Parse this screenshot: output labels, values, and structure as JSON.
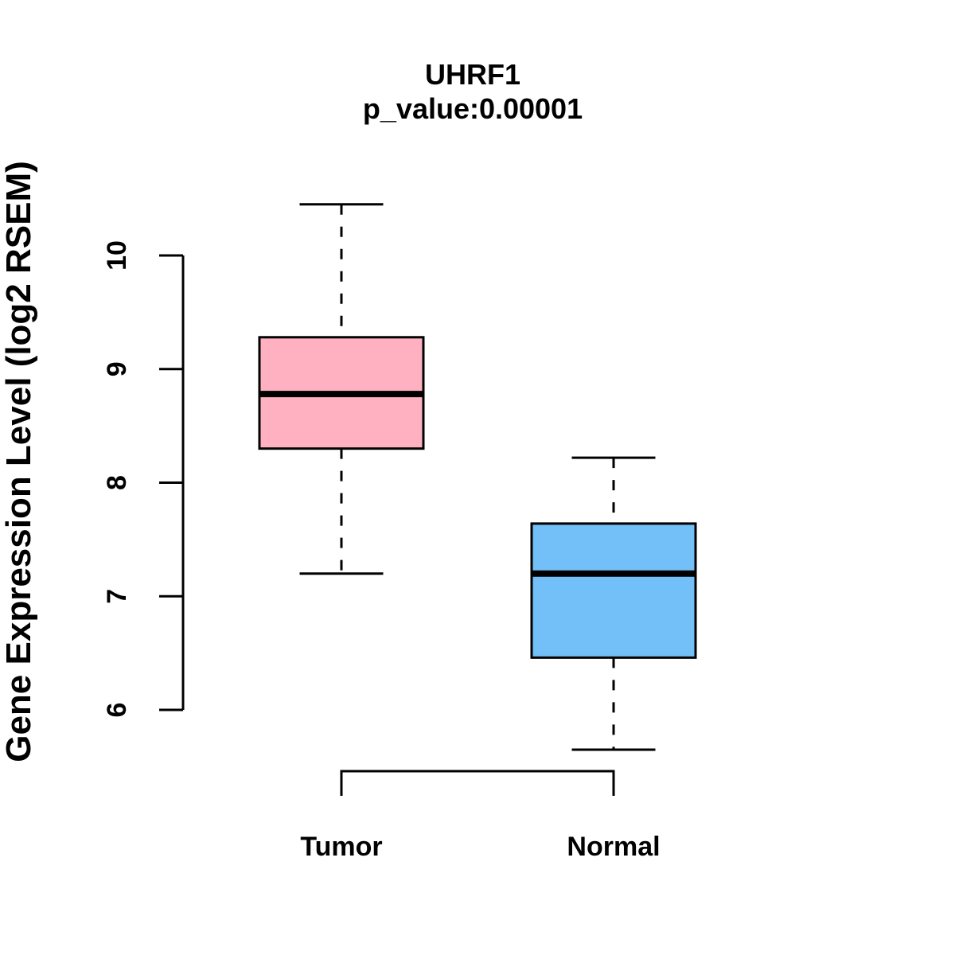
{
  "title": "UHRF1",
  "subtitle": "p_value:0.00001",
  "colors": {
    "tumor_fill": "#FFB1C1",
    "normal_fill": "#73BFF7",
    "line": "#000000",
    "background": "#FFFFFF"
  },
  "chart_data": {
    "type": "boxplot",
    "title": "UHRF1",
    "subtitle": "p_value:0.00001",
    "xlabel": "",
    "ylabel": "Gene Expression Level (log2 RSEM)",
    "ylim": [
      6,
      10
    ],
    "yticks": [
      "6",
      "7",
      "8",
      "9",
      "10"
    ],
    "grid": false,
    "legend": "none",
    "categories": [
      "Tumor",
      "Normal"
    ],
    "series": [
      {
        "name": "Tumor",
        "fill": "#FFB1C1",
        "whisker_low": 7.2,
        "q1": 8.3,
        "median": 8.78,
        "q3": 9.28,
        "whisker_high": 10.45
      },
      {
        "name": "Normal",
        "fill": "#73BFF7",
        "whisker_low": 5.65,
        "q1": 6.46,
        "median": 7.2,
        "q3": 7.64,
        "whisker_high": 8.22
      }
    ]
  }
}
